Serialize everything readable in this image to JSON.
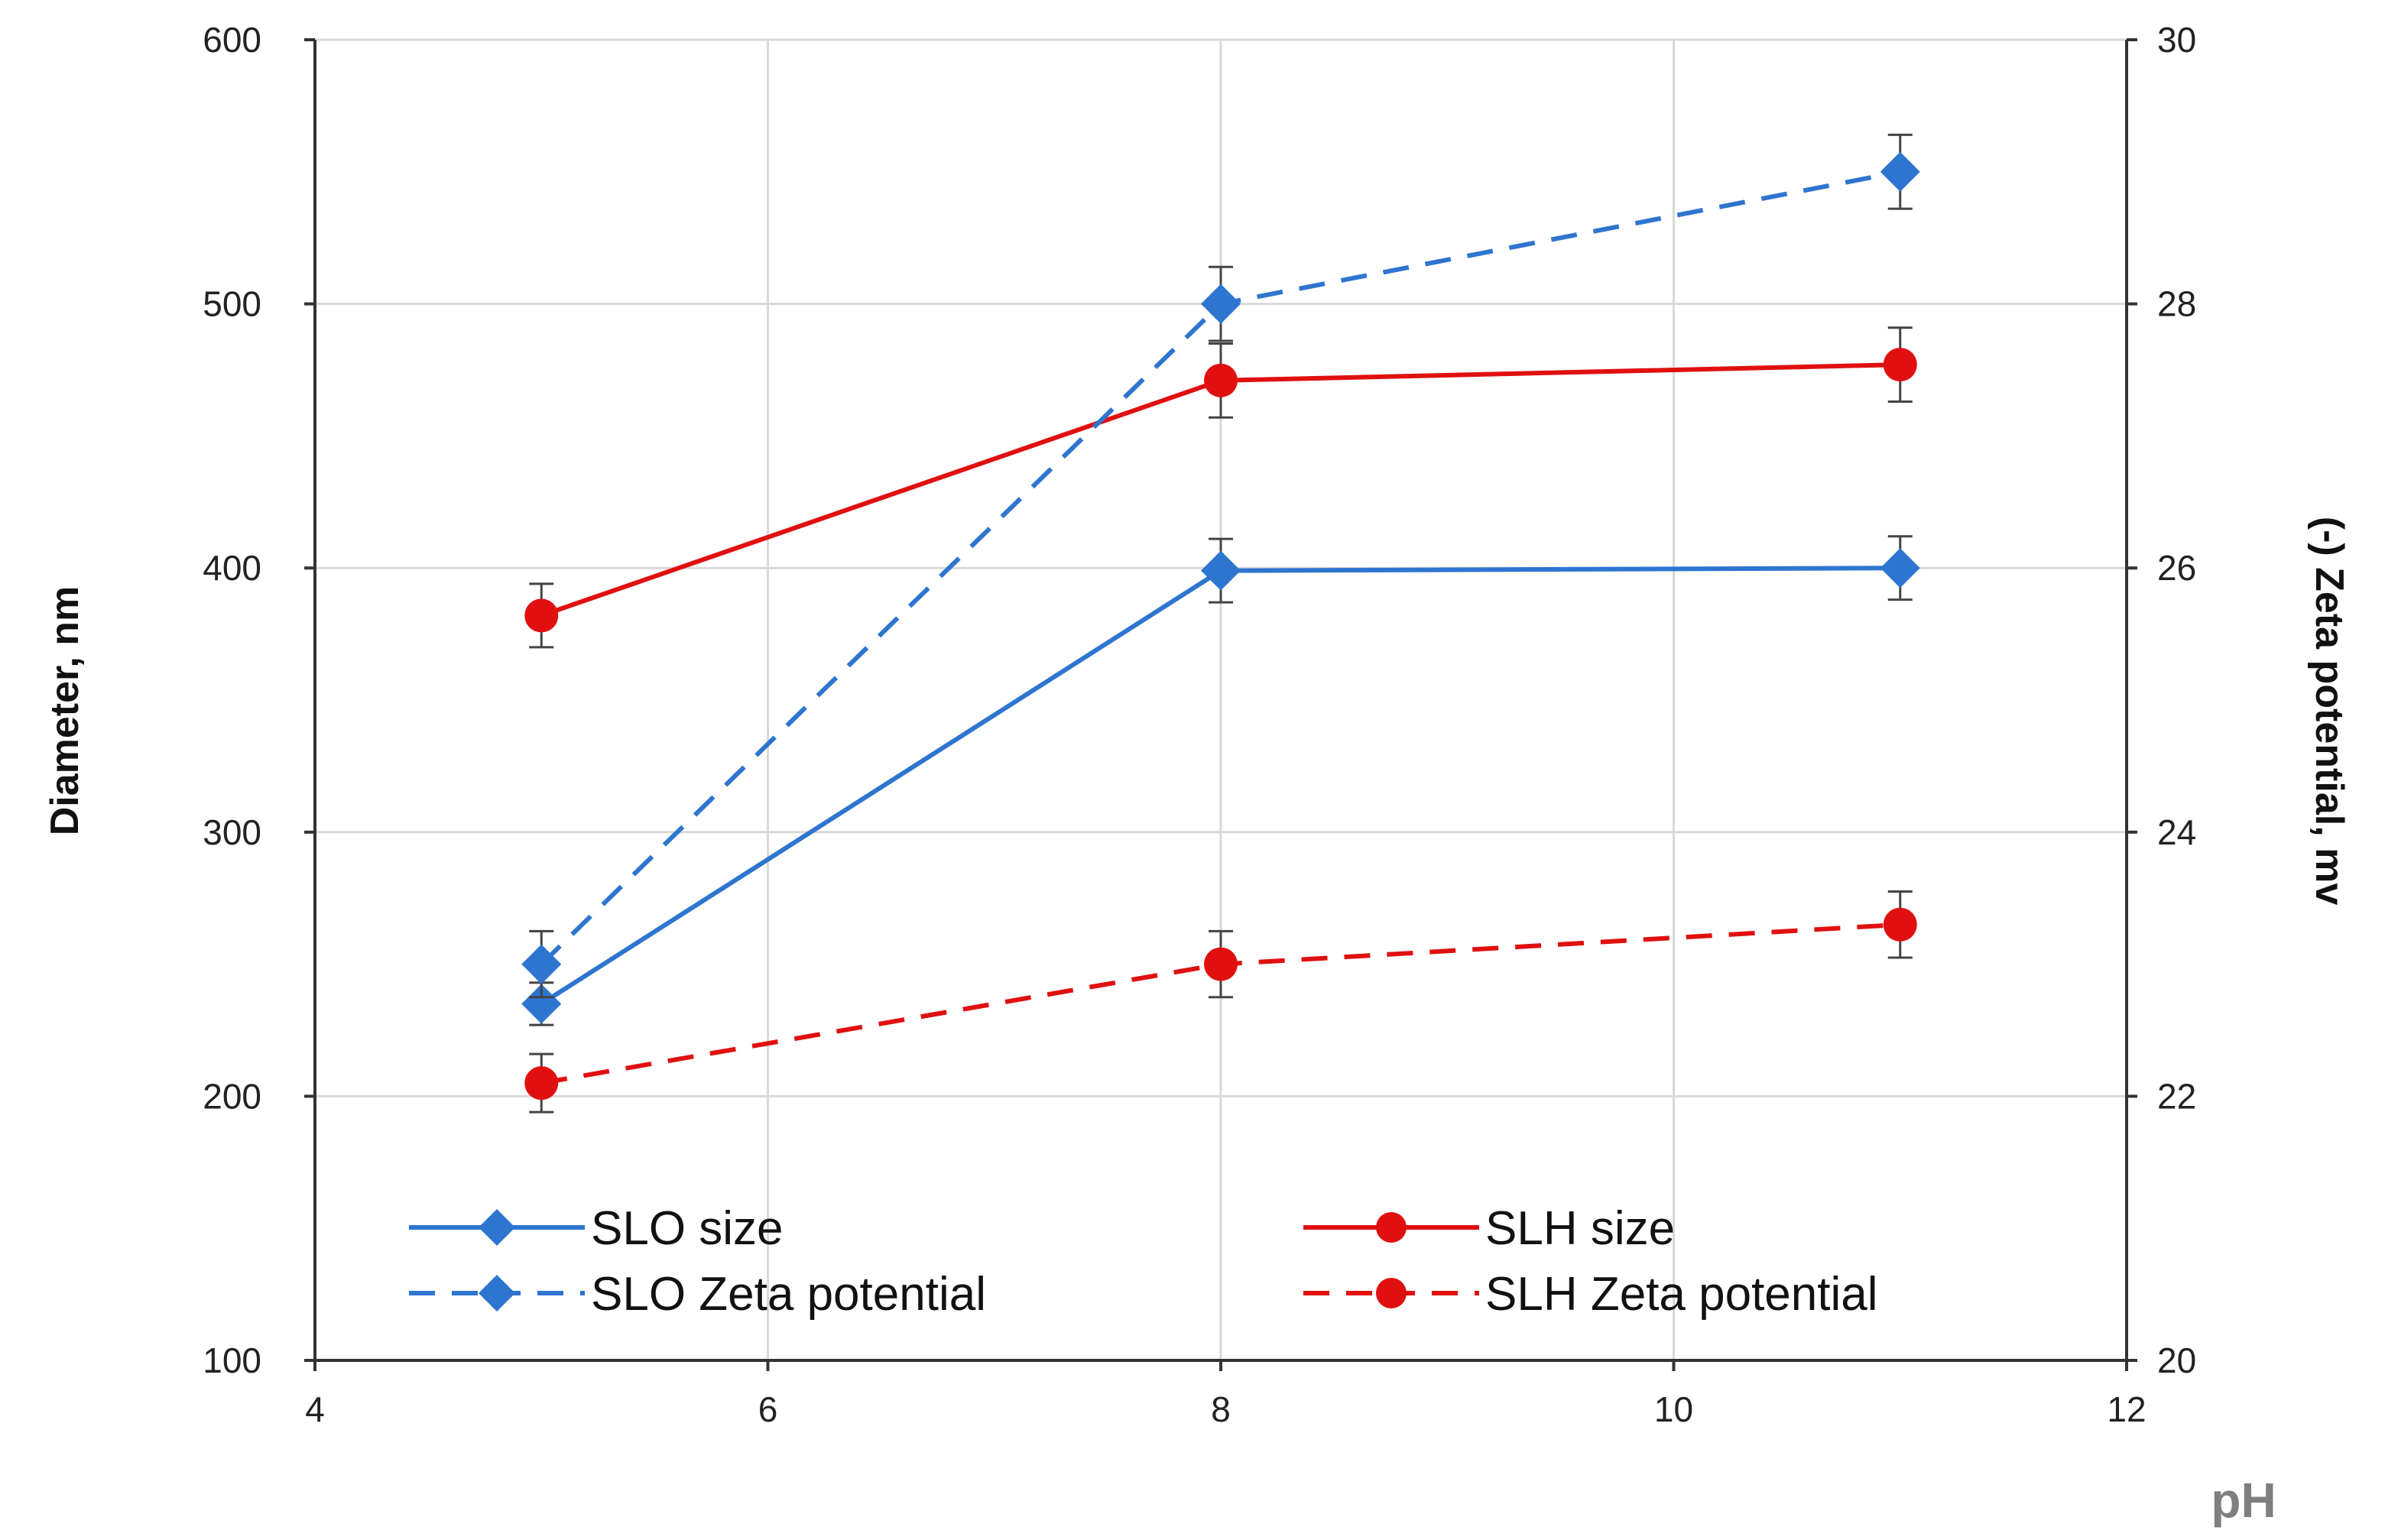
{
  "chart_data": {
    "type": "line",
    "title": "",
    "xlabel": "pH",
    "ylabel_left": "Diameter, nm",
    "ylabel_right": "(-) Zeta potential, mv",
    "xlim": [
      4,
      12
    ],
    "ylim_left": [
      100,
      600
    ],
    "ylim_right": [
      20,
      30
    ],
    "x_ticks": [
      4,
      6,
      8,
      10,
      12
    ],
    "y_left_ticks": [
      100,
      200,
      300,
      400,
      500,
      600
    ],
    "y_right_ticks": [
      20,
      22,
      24,
      26,
      28,
      30
    ],
    "grid": true,
    "legend_position": "bottom, inside plot",
    "series": [
      {
        "name": "SLO size",
        "axis": "left",
        "color": "#2e75d0",
        "dash": "solid",
        "marker": "diamond",
        "x": [
          5,
          8,
          11
        ],
        "values": [
          235,
          399,
          400
        ],
        "errors": [
          8,
          12,
          12
        ]
      },
      {
        "name": "SLH size",
        "axis": "left",
        "color": "#e01010",
        "dash": "solid",
        "marker": "circle",
        "x": [
          5,
          8,
          11
        ],
        "values": [
          382,
          471,
          477
        ],
        "errors": [
          12,
          14,
          14
        ]
      },
      {
        "name": "SLO Zeta potential",
        "axis": "right",
        "color": "#2e75d0",
        "dash": "dashed",
        "marker": "diamond",
        "x": [
          5,
          8,
          11
        ],
        "values": [
          23.0,
          28.0,
          29.0
        ],
        "errors": [
          0.25,
          0.28,
          0.28
        ]
      },
      {
        "name": "SLH Zeta potential",
        "axis": "right",
        "color": "#e01010",
        "dash": "dashed",
        "marker": "circle",
        "x": [
          5,
          8,
          11
        ],
        "values": [
          22.1,
          23.0,
          23.3
        ],
        "errors": [
          0.22,
          0.25,
          0.25
        ]
      }
    ]
  }
}
